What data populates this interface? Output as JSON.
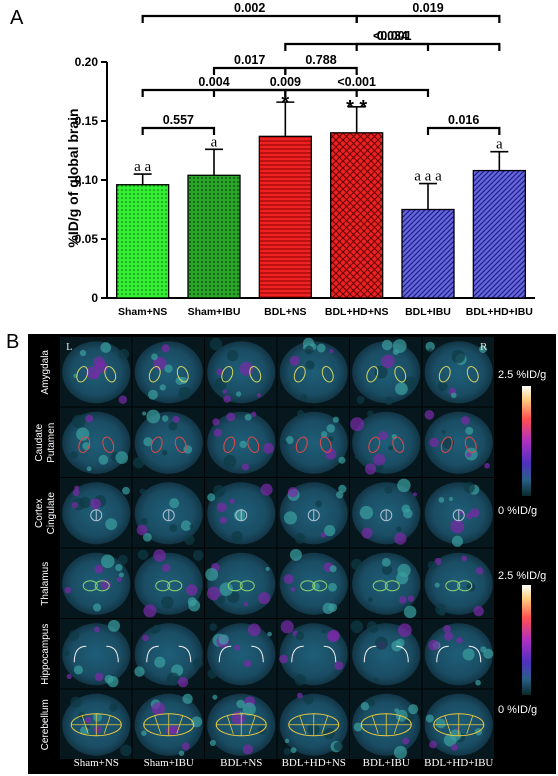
{
  "panel_a_label": "A",
  "panel_b_label": "B",
  "chart_data": {
    "type": "bar",
    "categories": [
      "Sham+NS",
      "Sham+IBU",
      "BDL+NS",
      "BDL+HD+NS",
      "BDL+IBU",
      "BDL+HD+IBU"
    ],
    "values": [
      0.096,
      0.104,
      0.137,
      0.14,
      0.075,
      0.108
    ],
    "errors": [
      0.009,
      0.022,
      0.029,
      0.022,
      0.022,
      0.016
    ],
    "colors": [
      "#22dd22",
      "#229a22",
      "#dd1111",
      "#dd1111",
      "#4444bb",
      "#4444bb"
    ],
    "patterns": [
      "dots",
      "dots",
      "hlines",
      "crosshatch",
      "diag",
      "diag"
    ],
    "ylabel": "%ID/g of global brain",
    "ylim": [
      0,
      0.2
    ],
    "yticks": [
      0,
      0.05,
      0.1,
      0.15,
      0.2
    ],
    "ytick_labels": [
      "0",
      "0.05",
      "0.10",
      "0.15",
      "0.20"
    ],
    "markers": [
      "a a",
      "a",
      "*",
      "* *",
      "a a a",
      "a"
    ],
    "comparisons": [
      {
        "a": 0,
        "b": 1,
        "p": "0.557"
      },
      {
        "a": 0,
        "b": 2,
        "p": "0.004"
      },
      {
        "a": 1,
        "b": 2,
        "p": "0.017"
      },
      {
        "a": 1,
        "b": 3,
        "p": "0.009"
      },
      {
        "a": 0,
        "b": 3,
        "p": "0.002"
      },
      {
        "a": 2,
        "b": 3,
        "p": "0.788"
      },
      {
        "a": 2,
        "b": 4,
        "p": "<0.001"
      },
      {
        "a": 3,
        "b": 4,
        "p": "<0.001"
      },
      {
        "a": 2,
        "b": 5,
        "p": "0.034"
      },
      {
        "a": 3,
        "b": 5,
        "p": "0.019"
      },
      {
        "a": 4,
        "b": 5,
        "p": "0.016"
      }
    ]
  },
  "panel_b": {
    "rows": [
      "Amygdala",
      "Caudate Putamen",
      "Cortex Cingulate",
      "Thalamus",
      "Hippocampus",
      "Cerebellum"
    ],
    "columns": [
      "Sham+NS",
      "Sham+IBU",
      "BDL+NS",
      "BDL+HD+NS",
      "BDL+IBU",
      "BDL+HD+IBU"
    ],
    "left_marker": "L",
    "right_marker": "R",
    "scale_max": "2.5 %ID/g",
    "scale_min": "0 %ID/g"
  }
}
